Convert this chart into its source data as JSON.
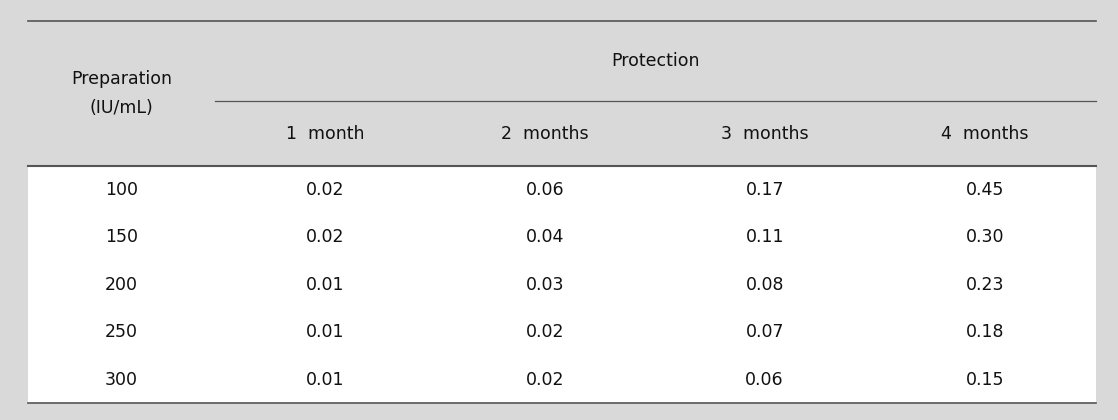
{
  "col_header_row2": [
    "1  month",
    "2  months",
    "3  months",
    "4  months"
  ],
  "preparation_col": [
    "100",
    "150",
    "200",
    "250",
    "300"
  ],
  "table_data": [
    [
      "0.02",
      "0.06",
      "0.17",
      "0.45"
    ],
    [
      "0.02",
      "0.04",
      "0.11",
      "0.30"
    ],
    [
      "0.01",
      "0.03",
      "0.08",
      "0.23"
    ],
    [
      "0.01",
      "0.02",
      "0.07",
      "0.18"
    ],
    [
      "0.01",
      "0.02",
      "0.06",
      "0.15"
    ]
  ],
  "header_bg_color": "#d9d9d9",
  "data_bg_color": "#ffffff",
  "outer_bg_color": "#d9d9d9",
  "line_color": "#555555",
  "text_color": "#111111",
  "font_size": 12.5
}
